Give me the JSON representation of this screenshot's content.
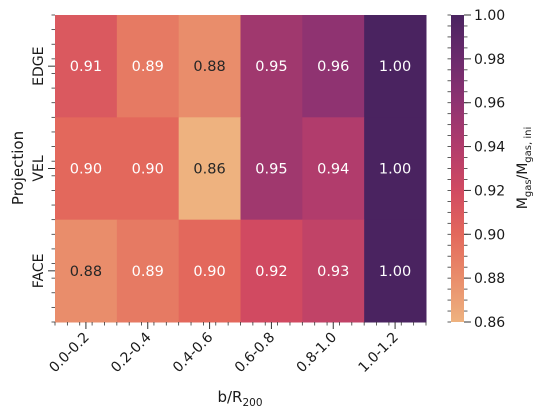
{
  "chart_data": {
    "type": "heatmap",
    "title": "",
    "xlabel": "b/R",
    "xlabel_sub": "200",
    "ylabel": "Projection",
    "x_categories": [
      "0.0-0.2",
      "0.2-0.4",
      "0.4-0.6",
      "0.6-0.8",
      "0.8-1.0",
      "1.0-1.2"
    ],
    "y_categories": [
      "EDGE",
      "VEL",
      "FACE"
    ],
    "values": [
      [
        0.91,
        0.89,
        0.88,
        0.95,
        0.96,
        1.0
      ],
      [
        0.9,
        0.9,
        0.86,
        0.95,
        0.94,
        1.0
      ],
      [
        0.88,
        0.89,
        0.9,
        0.92,
        0.93,
        1.0
      ]
    ],
    "value_labels": [
      [
        "0.91",
        "0.89",
        "0.88",
        "0.95",
        "0.96",
        "1.00"
      ],
      [
        "0.90",
        "0.90",
        "0.86",
        "0.95",
        "0.94",
        "1.00"
      ],
      [
        "0.88",
        "0.89",
        "0.90",
        "0.92",
        "0.93",
        "1.00"
      ]
    ],
    "colorbar": {
      "label_main": "M",
      "label_sub": "gas",
      "label_slash": "/M",
      "label_sub2": "gas, ini",
      "range": [
        0.86,
        1.0
      ],
      "ticks": [
        "0.86",
        "0.88",
        "0.90",
        "0.92",
        "0.94",
        "0.96",
        "0.98",
        "1.00"
      ],
      "colormap": "flare",
      "colormap_stops": [
        "#eeb27f",
        "#e98d6b",
        "#e3685c",
        "#d14a61",
        "#b13c6c",
        "#8f3371",
        "#6c2b6d",
        "#4a2360"
      ]
    },
    "grid": false,
    "legend": "none"
  }
}
